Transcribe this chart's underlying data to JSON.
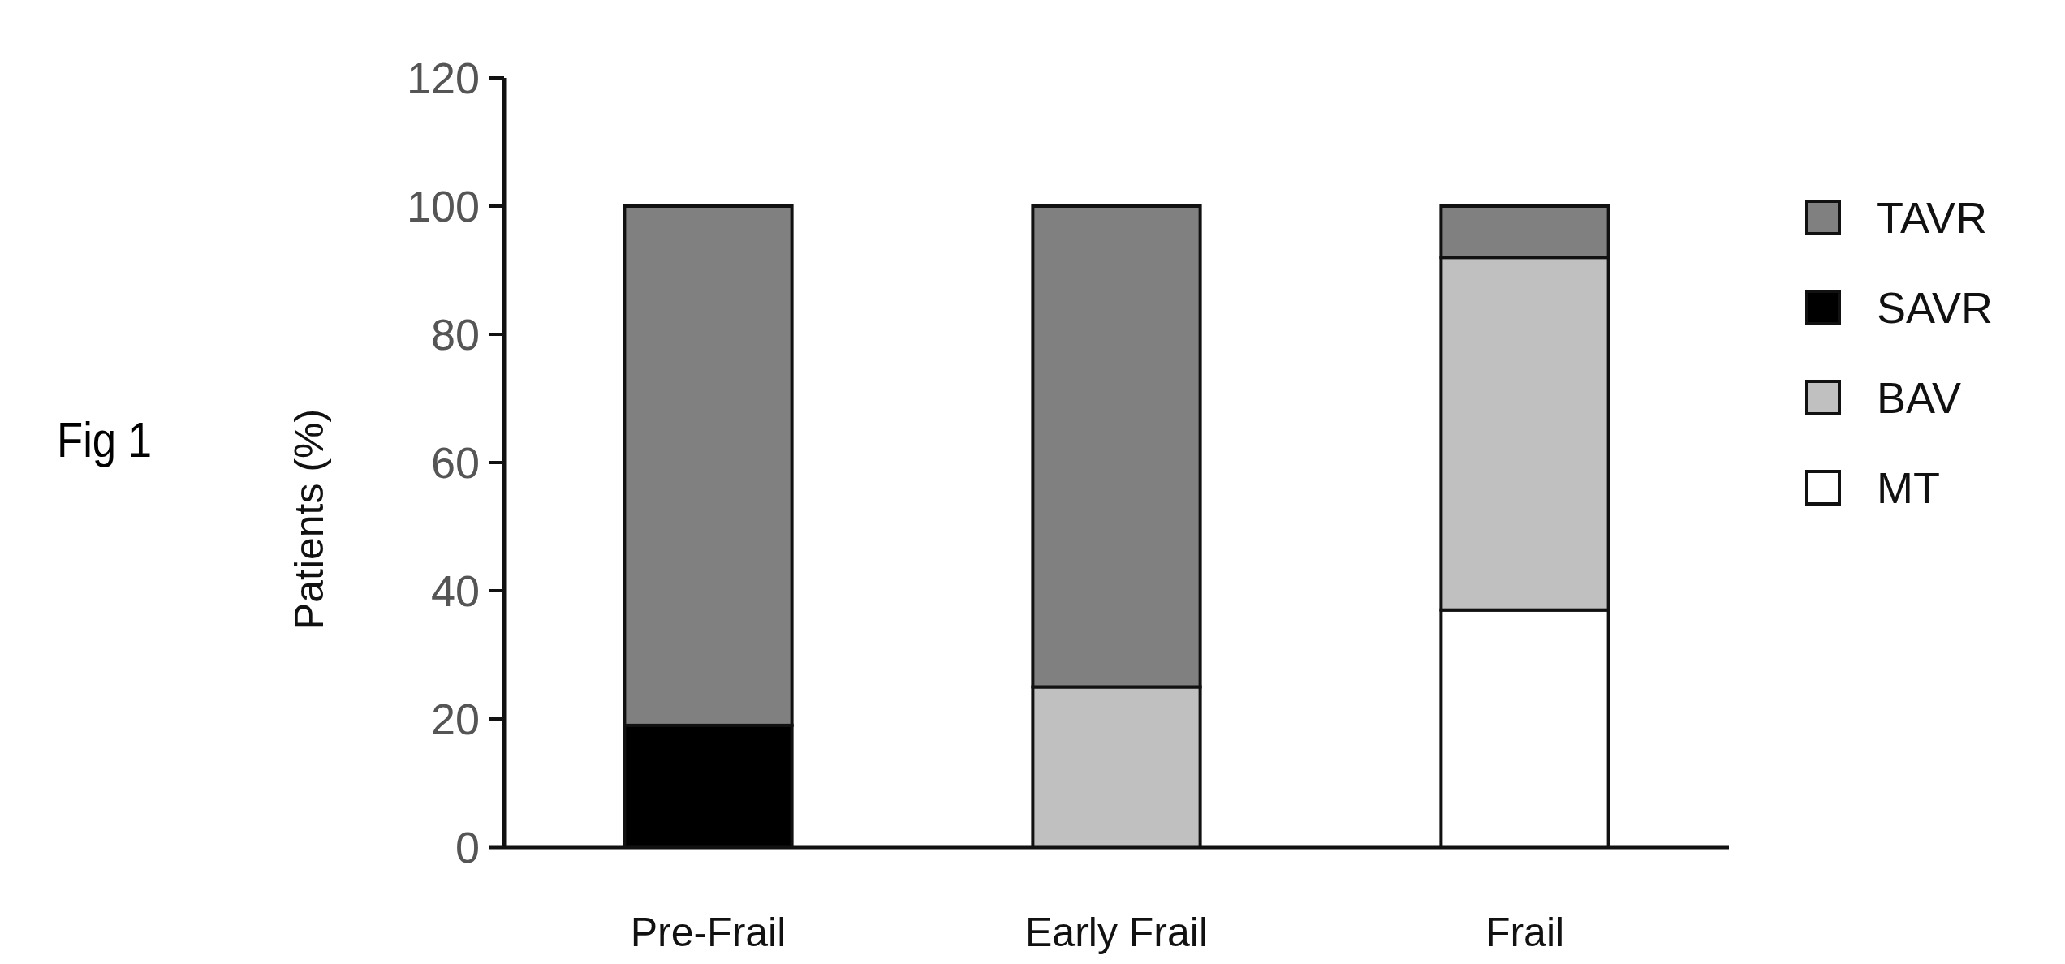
{
  "chart_data": {
    "type": "bar",
    "stacked": true,
    "ylabel": "Patients (%)",
    "annotations": [
      "Fig 1"
    ],
    "categories": [
      "Pre-Frail",
      "Early Frail",
      "Frail"
    ],
    "series": [
      {
        "name": "MT",
        "color": "#ffffff",
        "values": [
          0,
          0,
          37
        ]
      },
      {
        "name": "BAV",
        "color": "#c0c0c0",
        "values": [
          0,
          25,
          55
        ]
      },
      {
        "name": "SAVR",
        "color": "#000000",
        "values": [
          19,
          0,
          0
        ]
      },
      {
        "name": "TAVR",
        "color": "#808080",
        "values": [
          81,
          75,
          8
        ]
      }
    ],
    "ylim": [
      0,
      120
    ],
    "yticks": [
      0,
      20,
      40,
      60,
      80,
      100,
      120
    ],
    "legend": "right",
    "grid": false
  }
}
